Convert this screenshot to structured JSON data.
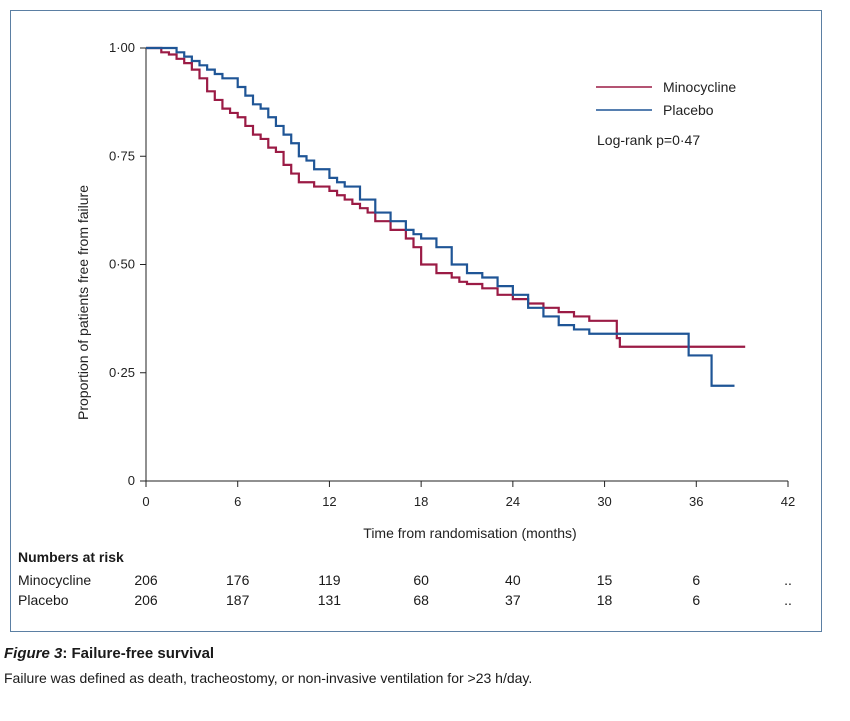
{
  "chart_data": {
    "type": "line",
    "subtype": "kaplan-meier step",
    "xlabel": "Time from randomisation (months)",
    "ylabel": "Proportion of patients free from failure",
    "xlim": [
      0,
      42
    ],
    "ylim": [
      0,
      1
    ],
    "x_ticks": [
      0,
      6,
      12,
      18,
      24,
      30,
      36,
      42
    ],
    "y_ticks": [
      0,
      0.25,
      0.5,
      0.75,
      1.0
    ],
    "x_tick_labels": [
      "0",
      "6",
      "12",
      "18",
      "24",
      "30",
      "36",
      "42"
    ],
    "y_tick_labels": [
      "0",
      "0·25",
      "0·50",
      "0·75",
      "1·00"
    ],
    "grid": false,
    "legend_position": "top-right",
    "annotation": "Log-rank p=0·47",
    "series": [
      {
        "name": "Minocycline",
        "color": "#9b1b45",
        "x": [
          0,
          1.0,
          1.5,
          2.0,
          2.5,
          3.0,
          3.5,
          4.0,
          4.5,
          5.0,
          5.5,
          6.0,
          6.5,
          7.0,
          7.5,
          8.0,
          8.5,
          9.0,
          9.5,
          10.0,
          11.0,
          12.0,
          12.5,
          13.0,
          13.5,
          14.0,
          14.5,
          15.0,
          16.0,
          17.0,
          17.5,
          18.0,
          19.0,
          20.0,
          20.5,
          21.0,
          22.0,
          23.0,
          24.0,
          25.0,
          26.0,
          27.0,
          28.0,
          29.0,
          30.0,
          30.8,
          31.0,
          33.0,
          35.0,
          36.0,
          37.0,
          39.2
        ],
        "y": [
          1.0,
          0.99,
          0.985,
          0.975,
          0.965,
          0.95,
          0.93,
          0.9,
          0.88,
          0.86,
          0.85,
          0.84,
          0.82,
          0.8,
          0.79,
          0.77,
          0.76,
          0.73,
          0.71,
          0.69,
          0.68,
          0.67,
          0.66,
          0.65,
          0.64,
          0.63,
          0.62,
          0.6,
          0.58,
          0.56,
          0.54,
          0.5,
          0.48,
          0.47,
          0.46,
          0.455,
          0.445,
          0.43,
          0.42,
          0.41,
          0.4,
          0.39,
          0.38,
          0.37,
          0.37,
          0.33,
          0.31,
          0.31,
          0.31,
          0.31,
          0.31,
          0.31
        ]
      },
      {
        "name": "Placebo",
        "color": "#1f5596",
        "x": [
          0,
          2.0,
          2.5,
          3.0,
          3.5,
          4.0,
          4.5,
          5.0,
          6.0,
          6.5,
          7.0,
          7.5,
          8.0,
          8.5,
          9.0,
          9.5,
          10.0,
          10.5,
          11.0,
          12.0,
          12.5,
          13.0,
          14.0,
          15.0,
          16.0,
          17.0,
          17.5,
          18.0,
          19.0,
          20.0,
          21.0,
          22.0,
          23.0,
          24.0,
          25.0,
          26.0,
          27.0,
          28.0,
          29.0,
          30.0,
          35.5,
          36.0,
          37.0,
          38.5
        ],
        "y": [
          1.0,
          0.99,
          0.98,
          0.97,
          0.96,
          0.95,
          0.94,
          0.93,
          0.91,
          0.89,
          0.87,
          0.86,
          0.84,
          0.82,
          0.8,
          0.78,
          0.75,
          0.74,
          0.72,
          0.7,
          0.69,
          0.68,
          0.65,
          0.62,
          0.6,
          0.58,
          0.57,
          0.56,
          0.54,
          0.5,
          0.48,
          0.47,
          0.45,
          0.43,
          0.4,
          0.38,
          0.36,
          0.35,
          0.34,
          0.34,
          0.29,
          0.29,
          0.22,
          0.22
        ]
      }
    ],
    "numbers_at_risk": {
      "title": "Numbers at risk",
      "times": [
        0,
        6,
        12,
        18,
        24,
        30,
        36,
        42
      ],
      "rows": [
        {
          "label": "Minocycline",
          "values": [
            "206",
            "176",
            "119",
            "60",
            "40",
            "15",
            "6",
            ".."
          ]
        },
        {
          "label": "Placebo",
          "values": [
            "206",
            "187",
            "131",
            "68",
            "37",
            "18",
            "6",
            ".."
          ]
        }
      ]
    }
  },
  "caption": {
    "figure_label": "Figure 3",
    "title": ": Failure-free survival",
    "text": "Failure was defined as death, tracheostomy, or non-invasive ventilation for >23 h/day."
  }
}
